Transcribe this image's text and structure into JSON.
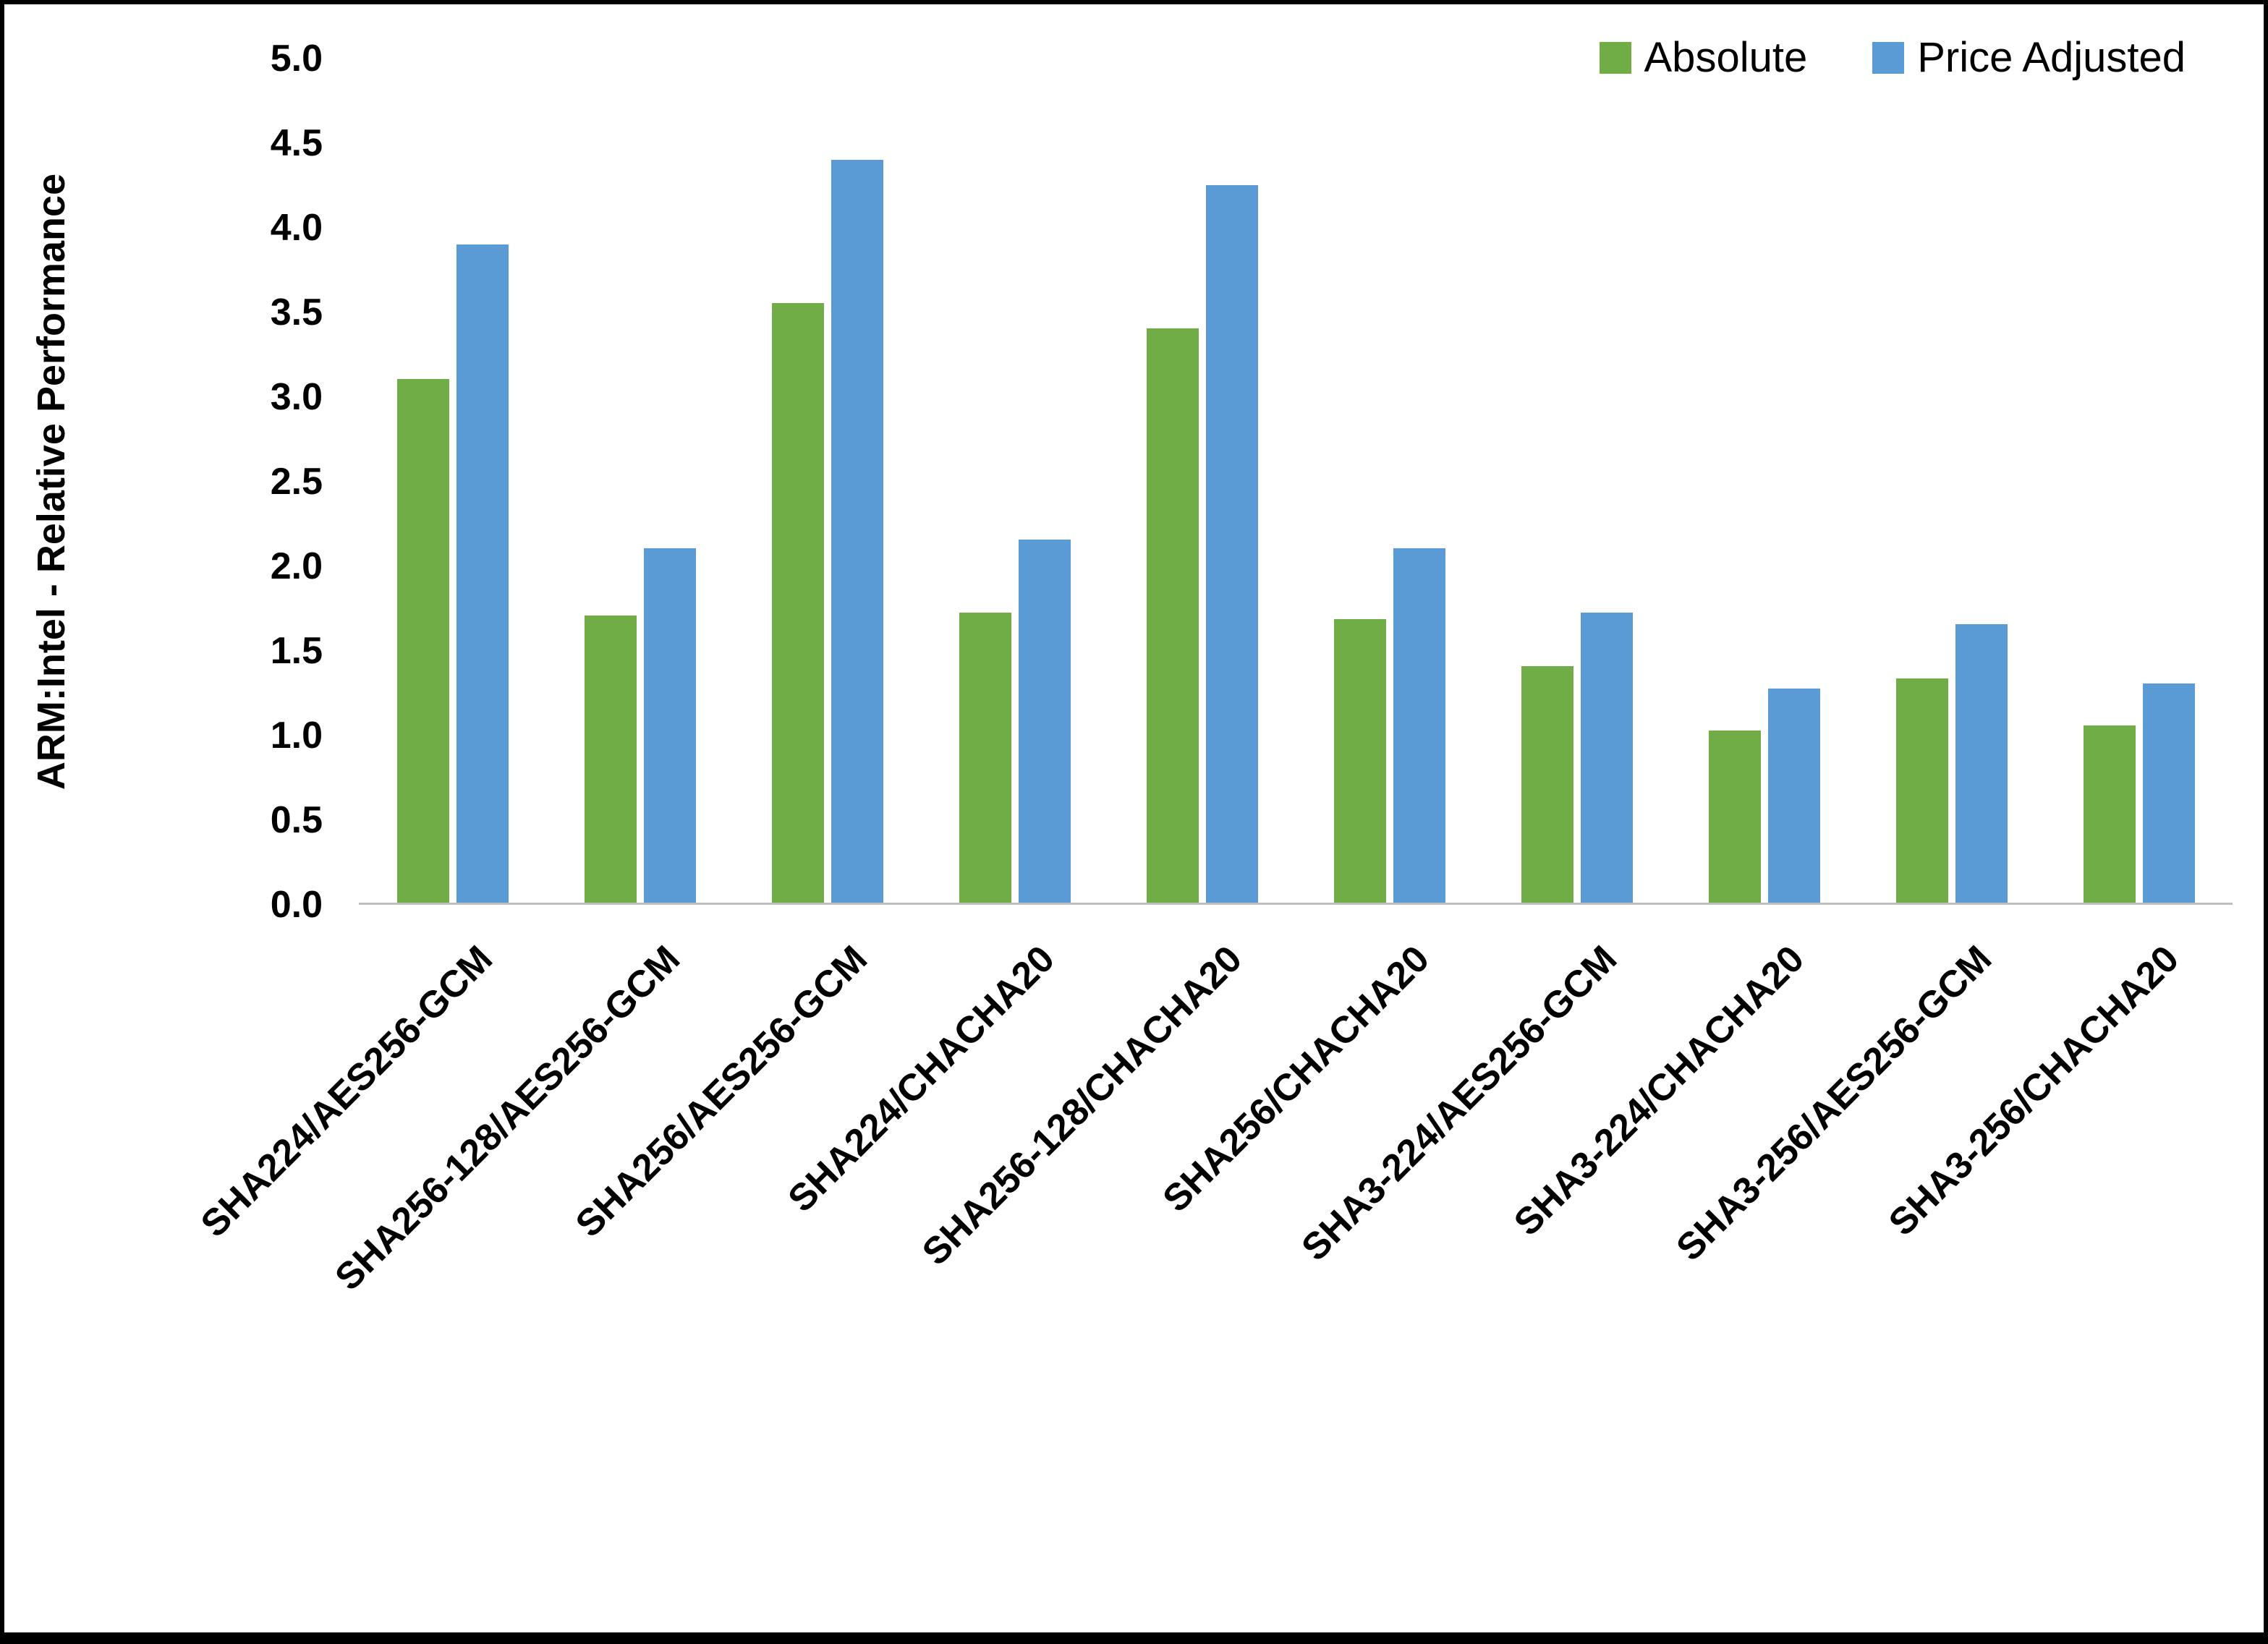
{
  "page": {
    "background": "#ffffff",
    "frame_color": "#000000"
  },
  "chart_data": {
    "type": "bar",
    "title": "",
    "xlabel": "",
    "ylabel": "ARM:Intel - Relative Performance",
    "ylim": [
      0,
      5
    ],
    "ytick_step": 0.5,
    "ytick_format_decimals": 1,
    "grid": false,
    "axis_line_color": "#BFBFBF",
    "legend_position": "top-right",
    "categories": [
      "SHA224/AES256-GCM",
      "SHA256-128/AES256-GCM",
      "SHA256/AES256-GCM",
      "SHA224/CHACHA20",
      "SHA256-128/CHACHA20",
      "SHA256/CHACHA20",
      "SHA3-224/AES256-GCM",
      "SHA3-224/CHACHA20",
      "SHA3-256/AES256-GCM",
      "SHA3-256/CHACHA20"
    ],
    "series": [
      {
        "name": "Absolute",
        "color": "#70AD47",
        "values": [
          3.1,
          1.7,
          3.55,
          1.72,
          3.4,
          1.68,
          1.4,
          1.02,
          1.33,
          1.05
        ]
      },
      {
        "name": "Price Adjusted",
        "color": "#5B9BD5",
        "values": [
          3.9,
          2.1,
          4.4,
          2.15,
          4.25,
          2.1,
          1.72,
          1.27,
          1.65,
          1.3
        ]
      }
    ]
  }
}
